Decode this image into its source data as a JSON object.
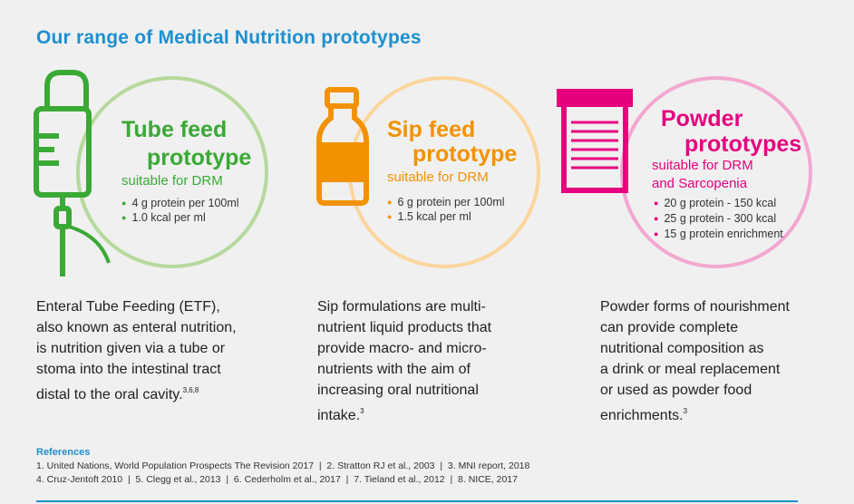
{
  "header": {
    "title": "Our range of Medical Nutrition prototypes"
  },
  "products": [
    {
      "title": [
        "Tube feed",
        "prototype"
      ],
      "subtitle": [
        "suitable for DRM"
      ],
      "bullets": [
        "4 g protein per 100ml",
        "1.0 kcal per ml"
      ],
      "description": [
        "Enteral Tube Feeding (ETF),",
        "also known as enteral nutrition,",
        "is nutrition given via a tube or",
        "stoma into the intestinal tract",
        "distal to the oral cavity."
      ],
      "superscript": "3,6,8"
    },
    {
      "title": [
        "Sip feed",
        "prototype"
      ],
      "subtitle": [
        "suitable for DRM"
      ],
      "bullets": [
        "6 g protein per 100ml",
        "1.5 kcal per ml"
      ],
      "description": [
        "Sip formulations are multi-",
        "nutrient liquid products that",
        "provide macro- and micro-",
        "nutrients with the aim of",
        "increasing oral nutritional",
        "intake."
      ],
      "superscript": "3"
    },
    {
      "title": [
        "Powder",
        "prototypes"
      ],
      "subtitle": [
        "suitable for DRM",
        "and Sarcopenia"
      ],
      "bullets": [
        "20 g protein - 150 kcal",
        "25 g protein - 300 kcal",
        "15 g protein enrichment"
      ],
      "description": [
        "Powder forms of nourishment",
        "can provide complete",
        "nutritional composition as",
        "a drink or meal replacement",
        "or used as powder food",
        "enrichments."
      ],
      "superscript": "3"
    }
  ],
  "references": {
    "heading": "References",
    "lines": [
      "1. United Nations, World Population Prospects The Revision 2017  |  2. Stratton RJ et al., 2003  |  3. MNI report, 2018",
      "4. Cruz-Jentoft 2010  |  5. Clegg et al., 2013  |  6. Cederholm et al., 2017  |  7. Tieland et al., 2012  |  8. NICE, 2017"
    ]
  }
}
